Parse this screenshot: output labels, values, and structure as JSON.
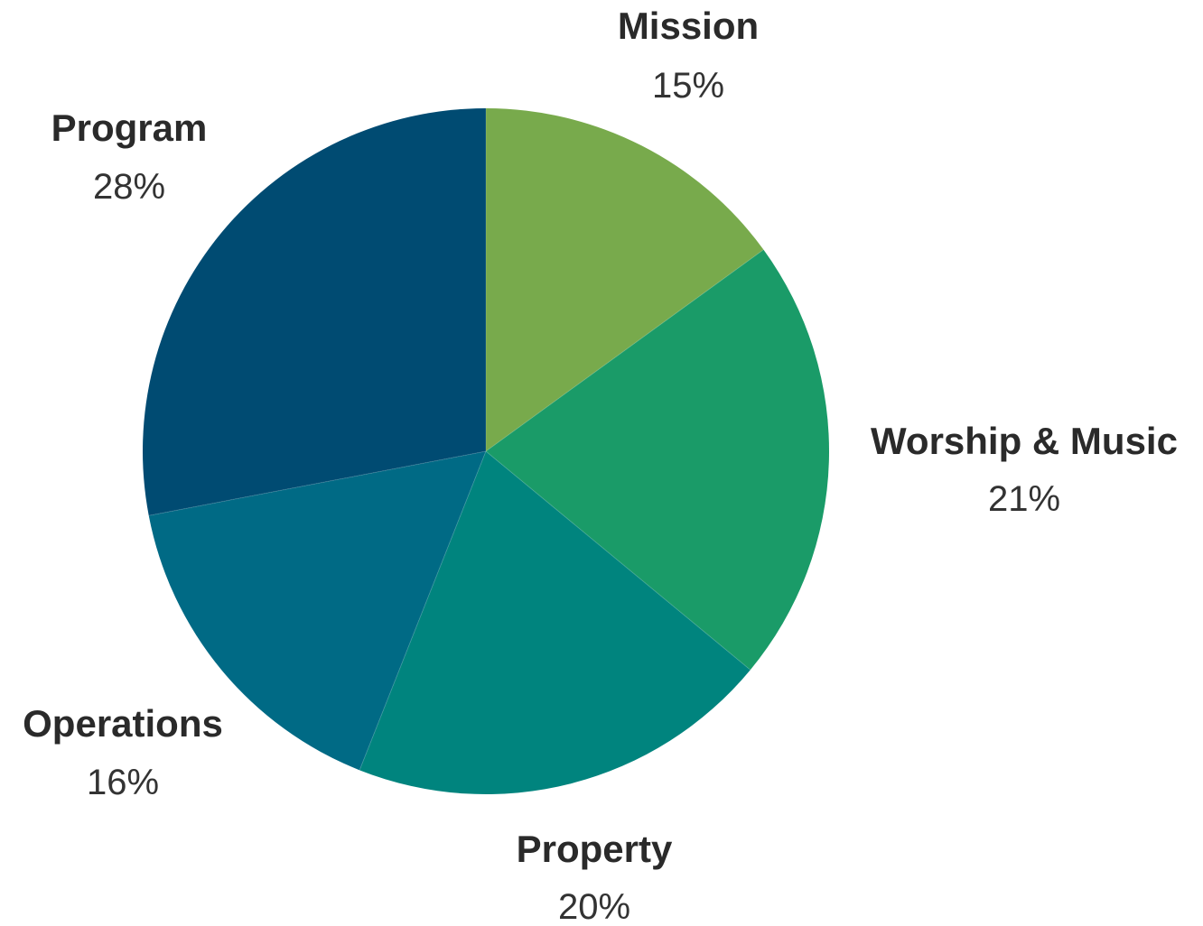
{
  "chart_data": {
    "type": "pie",
    "title": "",
    "slices": [
      {
        "label": "Mission",
        "value": 15,
        "display": "15%",
        "color": "#78aa4c"
      },
      {
        "label": "Worship & Music",
        "value": 21,
        "display": "21%",
        "color": "#1a9b68"
      },
      {
        "label": "Property",
        "value": 20,
        "display": "20%",
        "color": "#00847e"
      },
      {
        "label": "Operations",
        "value": 16,
        "display": "16%",
        "color": "#006a85"
      },
      {
        "label": "Program",
        "value": 28,
        "display": "28%",
        "color": "#004b72"
      }
    ],
    "start": "12 o'clock",
    "direction": "clockwise",
    "legend": "none"
  }
}
